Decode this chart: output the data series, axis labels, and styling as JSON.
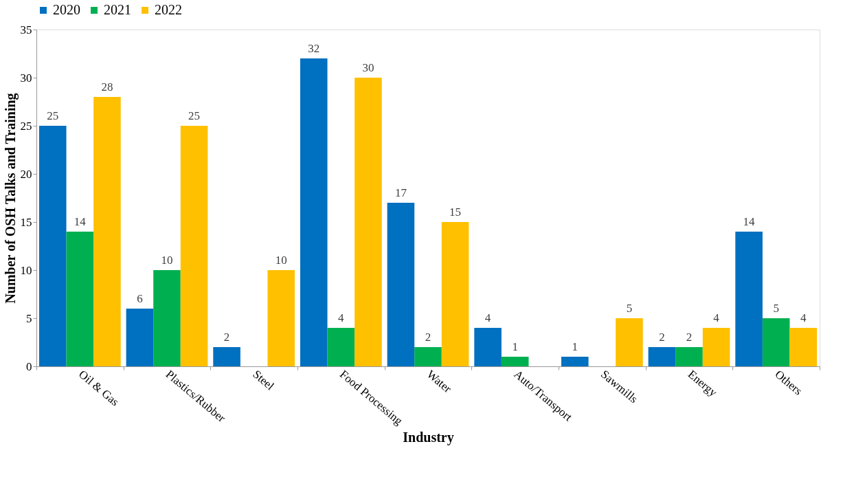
{
  "chart_data": {
    "type": "bar",
    "xlabel": "Industry",
    "ylabel": "Number of OSH Talks and Training",
    "categories": [
      "Oil & Gas",
      "Plastics/Rubber",
      "Steel",
      "Food Processing",
      "Water",
      "Auto/Transport",
      "Sawmills",
      "Energy",
      "Others"
    ],
    "series": [
      {
        "name": "2020",
        "color": "#0070c0",
        "values": [
          25,
          6,
          2,
          32,
          17,
          4,
          1,
          2,
          14
        ]
      },
      {
        "name": "2021",
        "color": "#00b050",
        "values": [
          14,
          10,
          null,
          4,
          2,
          1,
          null,
          2,
          5
        ]
      },
      {
        "name": "2022",
        "color": "#ffc000",
        "values": [
          28,
          25,
          10,
          30,
          15,
          null,
          5,
          4,
          4
        ]
      }
    ],
    "ylim": [
      0,
      35
    ],
    "yticks": [
      0,
      5,
      10,
      15,
      20,
      25,
      30,
      35
    ],
    "data_labels": true,
    "legend": "top",
    "grid": false
  }
}
